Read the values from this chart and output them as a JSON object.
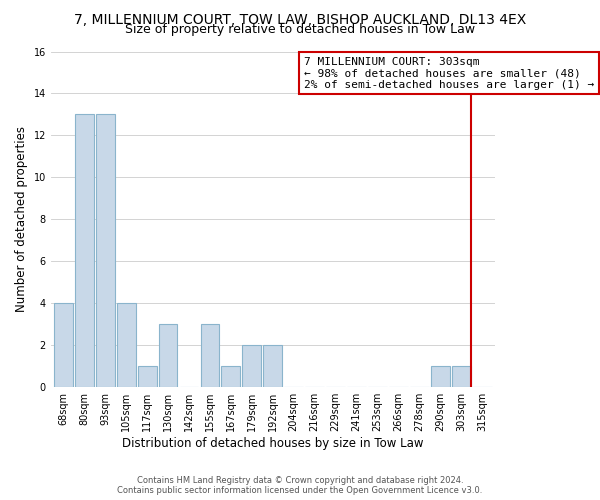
{
  "title_line1": "7, MILLENNIUM COURT, TOW LAW, BISHOP AUCKLAND, DL13 4EX",
  "title_line2": "Size of property relative to detached houses in Tow Law",
  "xlabel": "Distribution of detached houses by size in Tow Law",
  "ylabel": "Number of detached properties",
  "bin_labels": [
    "68sqm",
    "80sqm",
    "93sqm",
    "105sqm",
    "117sqm",
    "130sqm",
    "142sqm",
    "155sqm",
    "167sqm",
    "179sqm",
    "192sqm",
    "204sqm",
    "216sqm",
    "229sqm",
    "241sqm",
    "253sqm",
    "266sqm",
    "278sqm",
    "290sqm",
    "303sqm",
    "315sqm"
  ],
  "bar_heights": [
    4,
    13,
    13,
    4,
    1,
    3,
    0,
    3,
    1,
    2,
    2,
    0,
    0,
    0,
    0,
    0,
    0,
    0,
    1,
    1,
    0
  ],
  "bar_color": "#c8d8e8",
  "highlight_bar_index": 19,
  "highlight_edge_color": "#cc0000",
  "normal_edge_color": "#8ab4cc",
  "annotation_box_edge_color": "#cc0000",
  "annotation_title": "7 MILLENNIUM COURT: 303sqm",
  "annotation_line1": "← 98% of detached houses are smaller (48)",
  "annotation_line2": "2% of semi-detached houses are larger (1) →",
  "ylim": [
    0,
    16
  ],
  "yticks": [
    0,
    2,
    4,
    6,
    8,
    10,
    12,
    14,
    16
  ],
  "footer_line1": "Contains HM Land Registry data © Crown copyright and database right 2024.",
  "footer_line2": "Contains public sector information licensed under the Open Government Licence v3.0.",
  "title_fontsize": 10,
  "subtitle_fontsize": 9,
  "axis_label_fontsize": 8.5,
  "tick_label_fontsize": 7,
  "footer_fontsize": 6,
  "annotation_fontsize": 8
}
